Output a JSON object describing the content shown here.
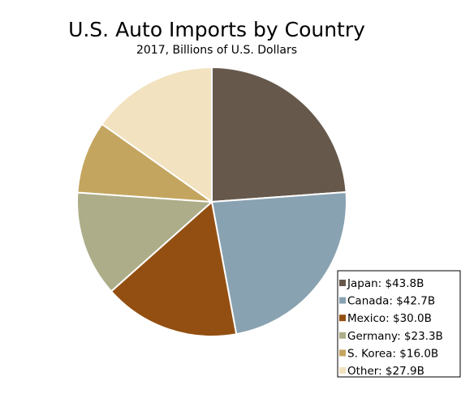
{
  "chart_data": {
    "type": "pie",
    "title": "U.S. Auto Imports by Country",
    "subtitle": "2017, Billions of U.S. Dollars",
    "categories": [
      "Japan",
      "Canada",
      "Mexico",
      "Germany",
      "S. Korea",
      "Other"
    ],
    "values": [
      43.8,
      42.7,
      30.0,
      23.3,
      16.0,
      27.9
    ],
    "colors": [
      "#66594c",
      "#89a2b1",
      "#934f12",
      "#adad89",
      "#c4a55f",
      "#f2e2bf"
    ],
    "legend": {
      "position": "bottom-right",
      "entries": [
        "Japan: $43.8B",
        "Canada: $42.7B",
        "Mexico: $30.0B",
        "Germany: $23.3B",
        "S. Korea: $16.0B",
        "Other: $27.9B"
      ]
    }
  }
}
